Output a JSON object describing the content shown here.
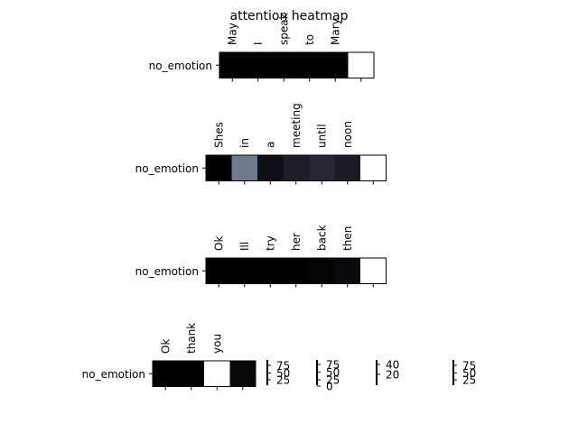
{
  "title": "attention heatmap",
  "chart_data": {
    "type": "heatmap",
    "title": "attention heatmap",
    "colormap": "bone",
    "colors": {
      "low": "#000000",
      "high": "#ffffff"
    },
    "panels": [
      {
        "row_label": "no_emotion",
        "tokens": [
          "May",
          "I",
          "speak",
          "to",
          "Mary",
          ""
        ],
        "values": [
          0.0,
          0.0,
          0.0,
          0.0,
          0.0,
          1.0
        ]
      },
      {
        "row_label": "no_emotion",
        "tokens": [
          "Shes",
          "in",
          "a",
          "meeting",
          "until",
          "noon",
          ""
        ],
        "values": [
          0.0,
          0.5,
          0.07,
          0.13,
          0.17,
          0.12,
          1.0
        ]
      },
      {
        "row_label": "no_emotion",
        "tokens": [
          "Ok",
          "Ill",
          "try",
          "her",
          "back",
          "then",
          ""
        ],
        "values": [
          0.0,
          0.0,
          0.0,
          0.0,
          0.02,
          0.05,
          1.0
        ]
      },
      {
        "row_label": "no_emotion",
        "tokens": [
          "Ok",
          "thank",
          "you",
          ""
        ],
        "values": [
          0.0,
          0.0,
          1.0,
          0.04
        ]
      }
    ],
    "colorbars": [
      {
        "ticks": [
          "75",
          "50",
          "25"
        ]
      },
      {
        "ticks": [
          "75",
          "50",
          "25",
          "0"
        ]
      },
      {
        "ticks": [
          "40",
          "20"
        ]
      },
      {
        "ticks": [
          "75",
          "50",
          "25"
        ]
      }
    ]
  }
}
